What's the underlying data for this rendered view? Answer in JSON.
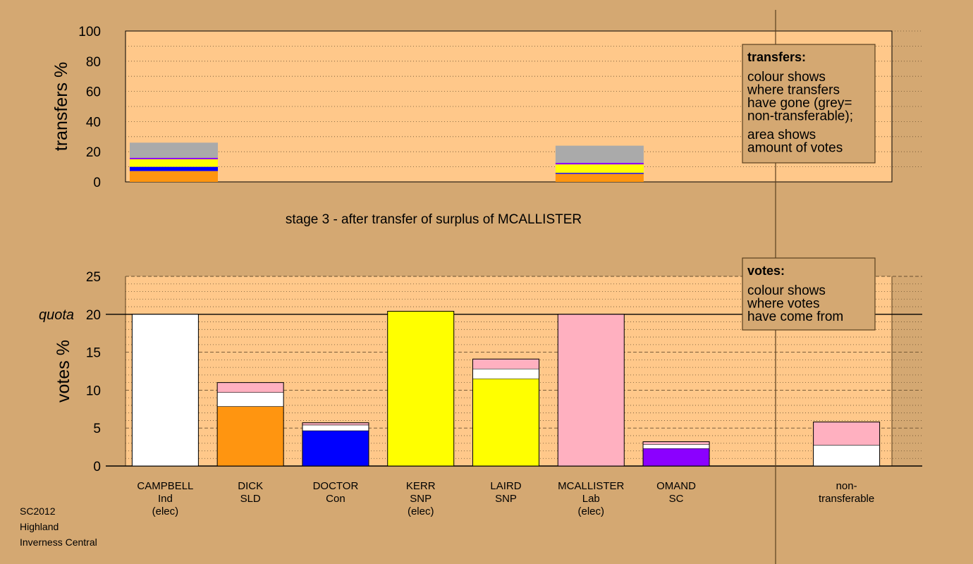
{
  "caption": [
    "SC2012",
    "Highland",
    "Inverness Central"
  ],
  "chart_data": [
    {
      "type": "bar",
      "stacked": true,
      "title": "stage 3 - after transfer of surplus of MCALLISTER",
      "ylabel": "transfers %",
      "ylim": [
        0,
        100
      ],
      "yticks": [
        "0",
        "20",
        "40",
        "60",
        "80",
        "100"
      ],
      "grid": true,
      "legend": {
        "position": "top-right",
        "title": "transfers:",
        "lines": [
          "colour shows",
          "where transfers",
          "have gone (grey=",
          "non-transferable);",
          "",
          "area shows",
          "amount of votes"
        ]
      },
      "bars": [
        {
          "name": "CAMPBELL",
          "segments": [
            {
              "from": "DICK",
              "color": "#ff9510",
              "value": 7.2
            },
            {
              "from": "DOCTOR",
              "color": "#0000ff",
              "value": 2.8
            },
            {
              "from": "KERR",
              "color": "#ffff00",
              "value": 2.8
            },
            {
              "from": "LAIRD",
              "color": "#ffff00",
              "value": 2.2
            },
            {
              "from": "OMAND",
              "color": "#8b00ff",
              "value": 1.0
            },
            {
              "from": "non-transferable",
              "color": "#aaaaaa",
              "value": 10.0
            }
          ]
        },
        {
          "name": "MCALLISTER",
          "segments": [
            {
              "from": "DICK",
              "color": "#ff9510",
              "value": 5.3
            },
            {
              "from": "DOCTOR",
              "color": "#0000ff",
              "value": 0.7
            },
            {
              "from": "KERR",
              "color": "#ffff00",
              "value": 2.8
            },
            {
              "from": "LAIRD",
              "color": "#ffff00",
              "value": 2.8
            },
            {
              "from": "OMAND",
              "color": "#8b00ff",
              "value": 1.0
            },
            {
              "from": "non-transferable",
              "color": "#aaaaaa",
              "value": 11.4
            }
          ]
        }
      ]
    },
    {
      "type": "bar",
      "stacked": true,
      "ylabel": "votes %",
      "ylim": [
        0,
        25
      ],
      "yticks": [
        "0",
        "5",
        "10",
        "15",
        "20",
        "25"
      ],
      "quota": {
        "value": 20,
        "label": "quota"
      },
      "grid": true,
      "legend": {
        "position": "top-right",
        "title": "votes:",
        "lines": [
          "colour shows",
          "where votes",
          "have come from"
        ]
      },
      "categories": [
        [
          "CAMPBELL",
          "Ind",
          "(elec)"
        ],
        [
          "DICK",
          "SLD"
        ],
        [
          "DOCTOR",
          "Con"
        ],
        [
          "KERR",
          "SNP",
          "(elec)"
        ],
        [
          "LAIRD",
          "SNP"
        ],
        [
          "MCALLISTER",
          "Lab",
          "(elec)"
        ],
        [
          "OMAND",
          "SC"
        ],
        [],
        [
          "non-",
          "transferable"
        ]
      ],
      "stacks": [
        [
          {
            "color": "#ffffff",
            "value": 20.0
          }
        ],
        [
          {
            "color": "#ff9510",
            "value": 7.85
          },
          {
            "color": "#ffffff",
            "value": 1.85
          },
          {
            "color": "#ffb0c0",
            "value": 1.3
          }
        ],
        [
          {
            "color": "#0000ff",
            "value": 4.65
          },
          {
            "color": "#ffffff",
            "value": 0.75
          },
          {
            "color": "#ffb0c0",
            "value": 0.3
          }
        ],
        [
          {
            "color": "#ffff00",
            "value": 20.4
          }
        ],
        [
          {
            "color": "#ffff00",
            "value": 11.5
          },
          {
            "color": "#ffffff",
            "value": 1.3
          },
          {
            "color": "#ffb0c0",
            "value": 1.3
          }
        ],
        [
          {
            "color": "#ffb0c0",
            "value": 20.0
          }
        ],
        [
          {
            "color": "#8b00ff",
            "value": 2.3
          },
          {
            "color": "#ffffff",
            "value": 0.55
          },
          {
            "color": "#ffb0c0",
            "value": 0.35
          }
        ],
        [],
        [
          {
            "color": "#ffffff",
            "value": 2.75
          },
          {
            "color": "#ffb0c0",
            "value": 3.05
          }
        ]
      ]
    }
  ]
}
